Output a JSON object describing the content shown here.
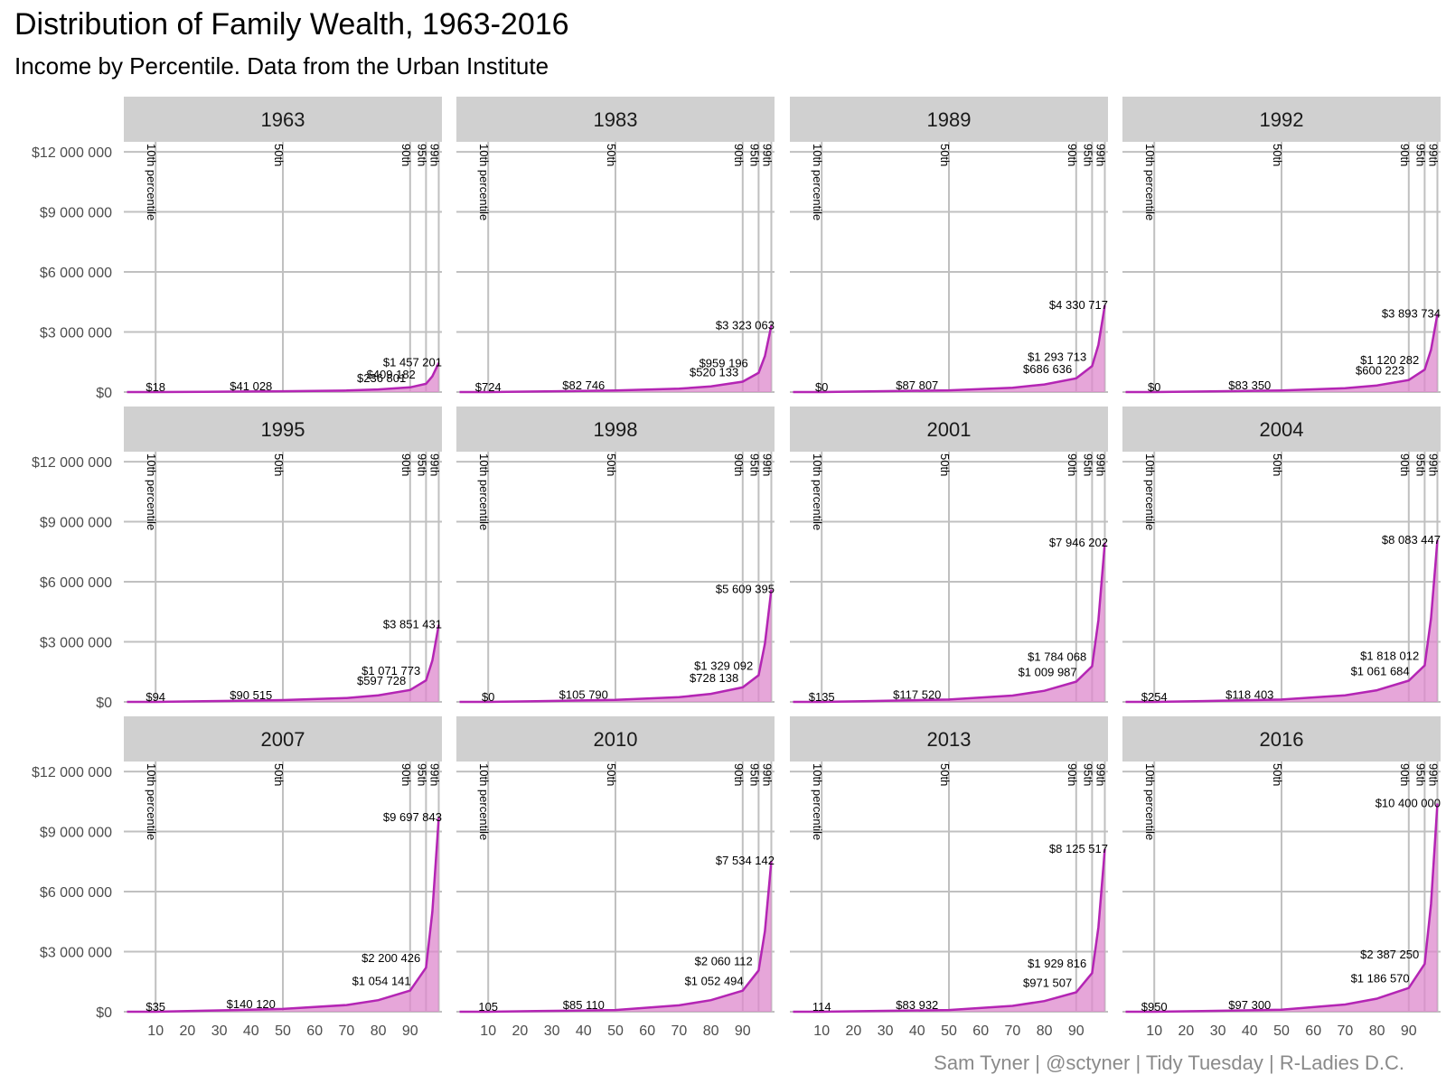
{
  "title": "Distribution of Family Wealth, 1963-2016",
  "subtitle": "Income by Percentile. Data from the Urban Institute",
  "caption": "Sam Tyner | @sctyner | Tidy Tuesday | R-Ladies D.C.",
  "colors": {
    "line": "#b425b4",
    "fill": "#dd88cc",
    "grid": "#c0c0c0",
    "strip": "#d0d0d0"
  },
  "chart_data": {
    "type": "area",
    "facet_by": "year",
    "ylim": [
      0,
      12500000
    ],
    "xlim": [
      0,
      100
    ],
    "y_ticks": [
      0,
      3000000,
      6000000,
      9000000,
      12000000
    ],
    "y_tick_labels": [
      "$0",
      "$3 000 000",
      "$6 000 000",
      "$9 000 000",
      "$12 000 000"
    ],
    "x_ticks": [
      10,
      20,
      30,
      40,
      50,
      60,
      70,
      80,
      90
    ],
    "x_tick_labels": [
      "10",
      "20",
      "30",
      "40",
      "50",
      "60",
      "70",
      "80",
      "90"
    ],
    "percentile_markers": [
      {
        "x": 10,
        "label": "10th percentile"
      },
      {
        "x": 50,
        "label": "50th"
      },
      {
        "x": 90,
        "label": "90th"
      },
      {
        "x": 95,
        "label": "95th"
      },
      {
        "x": 99,
        "label": "99th"
      }
    ],
    "panels": [
      {
        "year": "1963",
        "values": {
          "p10": 18,
          "p50": 41028,
          "p90": 236801,
          "p95": 409182,
          "p99": 1457201
        },
        "labels": [
          "$18",
          "$41 028",
          "$236 801",
          "$409 182",
          "$1 457 201"
        ]
      },
      {
        "year": "1983",
        "values": {
          "p10": 724,
          "p50": 82746,
          "p90": 520133,
          "p95": 959196,
          "p99": 3323063
        },
        "labels": [
          "$724",
          "$82 746",
          "$520 133",
          "$959 196",
          "$3 323 063"
        ]
      },
      {
        "year": "1989",
        "values": {
          "p10": 0,
          "p50": 87807,
          "p90": 686636,
          "p95": 1293713,
          "p99": 4330717
        },
        "labels": [
          "$0",
          "$87 807",
          "$686 636",
          "$1 293 713",
          "$4 330 717"
        ]
      },
      {
        "year": "1992",
        "values": {
          "p10": 0,
          "p50": 83350,
          "p90": 600223,
          "p95": 1120282,
          "p99": 3893734
        },
        "labels": [
          "$0",
          "$83 350",
          "$600 223",
          "$1 120 282",
          "$3 893 734"
        ]
      },
      {
        "year": "1995",
        "values": {
          "p10": 94,
          "p50": 90515,
          "p90": 597728,
          "p95": 1071773,
          "p99": 3851431
        },
        "labels": [
          "$94",
          "$90 515",
          "$597 728",
          "$1 071 773",
          "$3 851 431"
        ]
      },
      {
        "year": "1998",
        "values": {
          "p10": 0,
          "p50": 105790,
          "p90": 728138,
          "p95": 1329092,
          "p99": 5609395
        },
        "labels": [
          "$0",
          "$105 790",
          "$728 138",
          "$1 329 092",
          "$5 609 395"
        ]
      },
      {
        "year": "2001",
        "values": {
          "p10": 135,
          "p50": 117520,
          "p90": 1009987,
          "p95": 1784068,
          "p99": 7946202
        },
        "labels": [
          "$135",
          "$117 520",
          "$1 009 987",
          "$1 784 068",
          "$7 946 202"
        ]
      },
      {
        "year": "2004",
        "values": {
          "p10": 254,
          "p50": 118403,
          "p90": 1061684,
          "p95": 1818012,
          "p99": 8083447
        },
        "labels": [
          "$254",
          "$118 403",
          "$1 061 684",
          "$1 818 012",
          "$8 083 447"
        ]
      },
      {
        "year": "2007",
        "values": {
          "p10": 35,
          "p50": 140120,
          "p90": 1054141,
          "p95": 2200426,
          "p99": 9697843
        },
        "labels": [
          "$35",
          "$140 120",
          "$1 054 141",
          "$2 200 426",
          "$9 697 843"
        ]
      },
      {
        "year": "2010",
        "values": {
          "p10": 105,
          "p50": 85110,
          "p90": 1052494,
          "p95": 2060112,
          "p99": 7534142
        },
        "labels": [
          "105",
          "$85 110",
          "$1 052 494",
          "$2 060 112",
          "$7 534 142"
        ]
      },
      {
        "year": "2013",
        "values": {
          "p10": 114,
          "p50": 83932,
          "p90": 971507,
          "p95": 1929816,
          "p99": 8125517
        },
        "labels": [
          "114",
          "$83 932",
          "$971 507",
          "$1 929 816",
          "$8 125 517"
        ]
      },
      {
        "year": "2016",
        "values": {
          "p10": 950,
          "p50": 97300,
          "p90": 1186570,
          "p95": 2387250,
          "p99": 10400000
        },
        "labels": [
          "$950",
          "$97 300",
          "$1 186 570",
          "$2 387 250",
          "$10 400 000"
        ]
      }
    ]
  }
}
